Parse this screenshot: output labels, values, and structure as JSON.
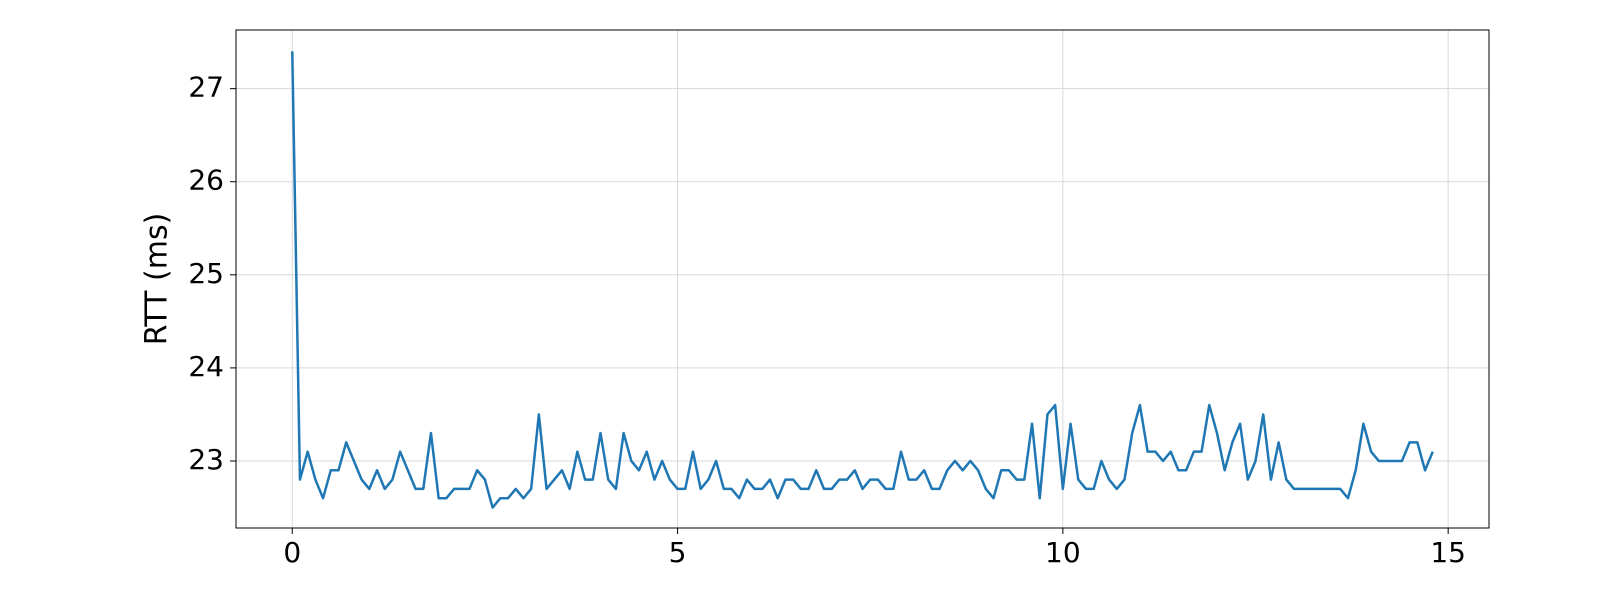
{
  "chart_data": {
    "type": "line",
    "y_label": "RTT (ms)",
    "x": [
      0,
      0.1,
      0.2,
      0.3,
      0.4,
      0.5,
      0.6,
      0.7,
      0.8,
      0.9,
      1,
      1.1,
      1.2,
      1.3,
      1.4,
      1.5,
      1.6,
      1.7,
      1.8,
      1.9,
      2,
      2.1,
      2.2,
      2.3,
      2.4,
      2.5,
      2.6,
      2.7,
      2.8,
      2.9,
      3,
      3.1,
      3.2,
      3.3,
      3.4,
      3.5,
      3.6,
      3.7,
      3.8,
      3.9,
      4,
      4.1,
      4.2,
      4.3,
      4.4,
      4.5,
      4.6,
      4.7,
      4.8,
      4.9,
      5,
      5.1,
      5.2,
      5.3,
      5.4,
      5.5,
      5.6,
      5.7,
      5.8,
      5.9,
      6,
      6.1,
      6.2,
      6.3,
      6.4,
      6.5,
      6.6,
      6.7,
      6.8,
      6.9,
      7,
      7.1,
      7.2,
      7.3,
      7.4,
      7.5,
      7.6,
      7.7,
      7.8,
      7.9,
      8,
      8.1,
      8.2,
      8.3,
      8.4,
      8.5,
      8.6,
      8.7,
      8.8,
      8.9,
      9,
      9.1,
      9.2,
      9.3,
      9.4,
      9.5,
      9.6,
      9.7,
      9.8,
      9.9,
      10,
      10.1,
      10.2,
      10.3,
      10.4,
      10.5,
      10.6,
      10.7,
      10.8,
      10.9,
      11,
      11.1,
      11.2,
      11.3,
      11.4,
      11.5,
      11.6,
      11.7,
      11.8,
      11.9,
      12,
      12.1,
      12.2,
      12.3,
      12.4,
      12.5,
      12.6,
      12.7,
      12.8,
      12.9,
      13,
      13.1,
      13.2,
      13.3,
      13.4,
      13.5,
      13.6,
      13.7,
      13.8,
      13.9,
      14,
      14.1,
      14.2,
      14.3,
      14.4,
      14.5,
      14.6,
      14.7,
      14.8
    ],
    "series": [
      {
        "color": "#1f77b4",
        "values": [
          27.4,
          22.8,
          23.1,
          22.8,
          22.6,
          22.9,
          22.9,
          23.2,
          23.0,
          22.8,
          22.7,
          22.9,
          22.7,
          22.8,
          23.1,
          22.9,
          22.7,
          22.7,
          23.3,
          22.6,
          22.6,
          22.7,
          22.7,
          22.7,
          22.9,
          22.8,
          22.5,
          22.6,
          22.6,
          22.7,
          22.6,
          22.7,
          23.5,
          22.7,
          22.8,
          22.9,
          22.7,
          23.1,
          22.8,
          22.8,
          23.3,
          22.8,
          22.7,
          23.3,
          23.0,
          22.9,
          23.1,
          22.8,
          23.0,
          22.8,
          22.7,
          22.7,
          23.1,
          22.7,
          22.8,
          23.0,
          22.7,
          22.7,
          22.6,
          22.8,
          22.7,
          22.7,
          22.8,
          22.6,
          22.8,
          22.8,
          22.7,
          22.7,
          22.9,
          22.7,
          22.7,
          22.8,
          22.8,
          22.9,
          22.7,
          22.8,
          22.8,
          22.7,
          22.7,
          23.1,
          22.8,
          22.8,
          22.9,
          22.7,
          22.7,
          22.9,
          23.0,
          22.9,
          23.0,
          22.9,
          22.7,
          22.6,
          22.9,
          22.9,
          22.8,
          22.8,
          23.4,
          22.6,
          23.5,
          23.6,
          22.7,
          23.4,
          22.8,
          22.7,
          22.7,
          23.0,
          22.8,
          22.7,
          22.8,
          23.3,
          23.6,
          23.1,
          23.1,
          23.0,
          23.1,
          22.9,
          22.9,
          23.1,
          23.1,
          23.6,
          23.3,
          22.9,
          23.2,
          23.4,
          22.8,
          23.0,
          23.5,
          22.8,
          23.2,
          22.8,
          22.7,
          22.7,
          22.7,
          22.7,
          22.7,
          22.7,
          22.7,
          22.6,
          22.9,
          23.4,
          23.1,
          23.0,
          23.0,
          23.0,
          23.0,
          23.2,
          23.2,
          22.9,
          23.1
        ]
      }
    ],
    "xlim": [
      -0.73,
      15.53
    ],
    "ylim": [
      22.28,
      27.63
    ],
    "xticks": [
      0,
      5,
      10,
      15
    ],
    "yticks": [
      23,
      24,
      25,
      26,
      27
    ],
    "grid": true
  }
}
